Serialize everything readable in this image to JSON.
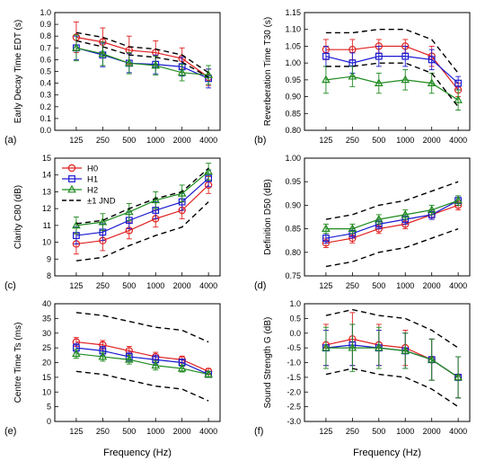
{
  "colors": {
    "H0": "#e02020",
    "H1": "#1a1ad0",
    "H2": "#1e8a1e",
    "JND": "#000000"
  },
  "chart_data": [
    {
      "type": "line",
      "panel_label": "(a)",
      "ylabel": "Early Decay Time EDT (s)",
      "xlabel": "",
      "categories": [
        "125",
        "250",
        "500",
        "1000",
        "2000",
        "4000"
      ],
      "ylim": [
        0.0,
        1.0
      ],
      "yticks": [
        "0.0",
        "0.1",
        "0.2",
        "0.3",
        "0.4",
        "0.5",
        "0.6",
        "0.7",
        "0.8",
        "0.9",
        "1.0"
      ],
      "series": [
        {
          "key": "H0",
          "values": [
            0.79,
            0.75,
            0.68,
            0.66,
            0.61,
            0.45
          ],
          "err": [
            0.13,
            0.12,
            0.12,
            0.1,
            0.09,
            0.07
          ]
        },
        {
          "key": "H1",
          "values": [
            0.7,
            0.64,
            0.57,
            0.56,
            0.54,
            0.44
          ],
          "err": [
            0.1,
            0.1,
            0.08,
            0.08,
            0.08,
            0.08
          ]
        },
        {
          "key": "H2",
          "values": [
            0.7,
            0.65,
            0.57,
            0.55,
            0.49,
            0.47
          ],
          "err": [
            0.11,
            0.1,
            0.09,
            0.08,
            0.07,
            0.08
          ]
        },
        {
          "key": "JND",
          "values": [
            0.83,
            0.79,
            0.71,
            0.69,
            0.64,
            0.49
          ]
        },
        {
          "key": "JND",
          "values": [
            0.76,
            0.71,
            0.64,
            0.62,
            0.58,
            0.45
          ]
        }
      ]
    },
    {
      "type": "line",
      "panel_label": "(b)",
      "ylabel": "Reverberation Time T30 (s)",
      "xlabel": "",
      "categories": [
        "125",
        "250",
        "500",
        "1000",
        "2000",
        "4000"
      ],
      "ylim": [
        0.8,
        1.15
      ],
      "yticks": [
        "0.80",
        "0.85",
        "0.90",
        "0.95",
        "1.00",
        "1.05",
        "1.10",
        "1.15"
      ],
      "series": [
        {
          "key": "H0",
          "values": [
            1.04,
            1.04,
            1.05,
            1.05,
            1.02,
            0.92
          ],
          "err": [
            0.03,
            0.03,
            0.02,
            0.02,
            0.03,
            0.02
          ]
        },
        {
          "key": "H1",
          "values": [
            1.02,
            1.0,
            1.02,
            1.02,
            1.01,
            0.94
          ],
          "err": [
            0.03,
            0.03,
            0.03,
            0.03,
            0.03,
            0.02
          ]
        },
        {
          "key": "H2",
          "values": [
            0.95,
            0.96,
            0.94,
            0.95,
            0.94,
            0.89
          ],
          "err": [
            0.04,
            0.03,
            0.03,
            0.03,
            0.03,
            0.03
          ]
        },
        {
          "key": "JND",
          "values": [
            1.09,
            1.09,
            1.1,
            1.1,
            1.07,
            0.97
          ]
        },
        {
          "key": "JND",
          "values": [
            0.99,
            0.99,
            1.0,
            1.0,
            0.97,
            0.87
          ]
        }
      ]
    },
    {
      "type": "line",
      "panel_label": "(c)",
      "ylabel": "Clarity C80 (dB)",
      "xlabel": "",
      "categories": [
        "125",
        "250",
        "500",
        "1000",
        "2000",
        "4000"
      ],
      "ylim": [
        8,
        15
      ],
      "yticks": [
        "8",
        "9",
        "10",
        "11",
        "12",
        "13",
        "14",
        "15"
      ],
      "series": [
        {
          "key": "H0",
          "values": [
            9.9,
            10.1,
            10.7,
            11.4,
            11.9,
            13.4
          ],
          "err": [
            0.6,
            0.6,
            0.5,
            0.5,
            0.5,
            0.5
          ]
        },
        {
          "key": "H1",
          "values": [
            10.4,
            10.6,
            11.3,
            11.9,
            12.4,
            13.8
          ],
          "err": [
            0.5,
            0.5,
            0.5,
            0.5,
            0.5,
            0.5
          ]
        },
        {
          "key": "H2",
          "values": [
            11.0,
            11.2,
            11.8,
            12.5,
            12.9,
            14.2
          ],
          "err": [
            0.5,
            0.5,
            0.5,
            0.5,
            0.5,
            0.5
          ]
        },
        {
          "key": "JND",
          "values": [
            11.1,
            11.3,
            12.0,
            12.6,
            13.0,
            14.4
          ]
        },
        {
          "key": "JND",
          "values": [
            8.9,
            9.1,
            9.8,
            10.4,
            10.9,
            12.4
          ]
        }
      ]
    },
    {
      "type": "line",
      "panel_label": "(d)",
      "ylabel": "Definition D50 (dB)",
      "xlabel": "",
      "categories": [
        "125",
        "250",
        "500",
        "1000",
        "2000",
        "4000"
      ],
      "ylim": [
        0.75,
        1.0
      ],
      "yticks": [
        "0.75",
        "0.80",
        "0.85",
        "0.90",
        "0.95",
        "1.00"
      ],
      "series": [
        {
          "key": "H0",
          "values": [
            0.82,
            0.83,
            0.85,
            0.86,
            0.88,
            0.9
          ],
          "err": [
            0.01,
            0.01,
            0.01,
            0.01,
            0.01,
            0.01
          ]
        },
        {
          "key": "H1",
          "values": [
            0.83,
            0.84,
            0.86,
            0.87,
            0.88,
            0.91
          ],
          "err": [
            0.01,
            0.01,
            0.01,
            0.01,
            0.01,
            0.01
          ]
        },
        {
          "key": "H2",
          "values": [
            0.85,
            0.85,
            0.87,
            0.88,
            0.89,
            0.91
          ],
          "err": [
            0.01,
            0.01,
            0.01,
            0.01,
            0.01,
            0.01
          ]
        },
        {
          "key": "JND",
          "values": [
            0.87,
            0.88,
            0.9,
            0.91,
            0.93,
            0.95
          ]
        },
        {
          "key": "JND",
          "values": [
            0.77,
            0.78,
            0.8,
            0.81,
            0.83,
            0.85
          ]
        }
      ]
    },
    {
      "type": "line",
      "panel_label": "(e)",
      "ylabel": "Centre Time Ts (ms)",
      "xlabel": "Frequency (Hz)",
      "categories": [
        "125",
        "250",
        "500",
        "1000",
        "2000",
        "4000"
      ],
      "ylim": [
        0,
        40
      ],
      "yticks": [
        "0",
        "5",
        "10",
        "15",
        "20",
        "25",
        "30",
        "35",
        "40"
      ],
      "series": [
        {
          "key": "H0",
          "values": [
            27,
            26,
            24,
            22,
            21,
            17
          ],
          "err": [
            1.5,
            1.5,
            1.5,
            1.5,
            1.2,
            1.0
          ]
        },
        {
          "key": "H1",
          "values": [
            25,
            24,
            22,
            21,
            20,
            16
          ],
          "err": [
            1.5,
            1.5,
            1.5,
            1.5,
            1.2,
            1.0
          ]
        },
        {
          "key": "H2",
          "values": [
            23,
            22,
            21,
            19,
            18,
            16
          ],
          "err": [
            1.5,
            1.5,
            1.5,
            1.5,
            1.2,
            1.0
          ]
        },
        {
          "key": "JND",
          "values": [
            37,
            36,
            34,
            32,
            31,
            27
          ]
        },
        {
          "key": "JND",
          "values": [
            17,
            16,
            14,
            12,
            11,
            7
          ]
        }
      ]
    },
    {
      "type": "line",
      "panel_label": "(f)",
      "ylabel": "Sound Strength G (dB)",
      "xlabel": "Frequency (Hz)",
      "categories": [
        "125",
        "250",
        "500",
        "1000",
        "2000",
        "4000"
      ],
      "ylim": [
        -3.0,
        1.0
      ],
      "yticks": [
        "-3.0",
        "-2.5",
        "-2.0",
        "-1.5",
        "-1.0",
        "-0.5",
        "0.0",
        "0.5",
        "1.0"
      ],
      "series": [
        {
          "key": "H0",
          "values": [
            -0.4,
            -0.2,
            -0.4,
            -0.5,
            -0.9,
            -1.5
          ],
          "err": [
            0.7,
            0.9,
            0.7,
            0.6,
            0.7,
            0.7
          ]
        },
        {
          "key": "H1",
          "values": [
            -0.5,
            -0.4,
            -0.5,
            -0.6,
            -0.9,
            -1.5
          ],
          "err": [
            0.6,
            0.7,
            0.6,
            0.6,
            0.7,
            0.7
          ]
        },
        {
          "key": "H2",
          "values": [
            -0.5,
            -0.5,
            -0.5,
            -0.6,
            -0.9,
            -1.5
          ],
          "err": [
            0.7,
            0.8,
            0.7,
            0.6,
            0.7,
            0.7
          ]
        },
        {
          "key": "JND",
          "values": [
            0.6,
            0.8,
            0.6,
            0.5,
            0.1,
            -0.5
          ]
        },
        {
          "key": "JND",
          "values": [
            -1.4,
            -1.2,
            -1.4,
            -1.5,
            -1.9,
            -2.5
          ]
        }
      ]
    }
  ],
  "legend": {
    "panel": "(c)",
    "entries": [
      {
        "key": "H0",
        "label": "H0",
        "marker": "circle"
      },
      {
        "key": "H1",
        "label": "H1",
        "marker": "square"
      },
      {
        "key": "H2",
        "label": "H2",
        "marker": "triangle"
      },
      {
        "key": "JND",
        "label": "±1 JND",
        "marker": "dash"
      }
    ]
  }
}
